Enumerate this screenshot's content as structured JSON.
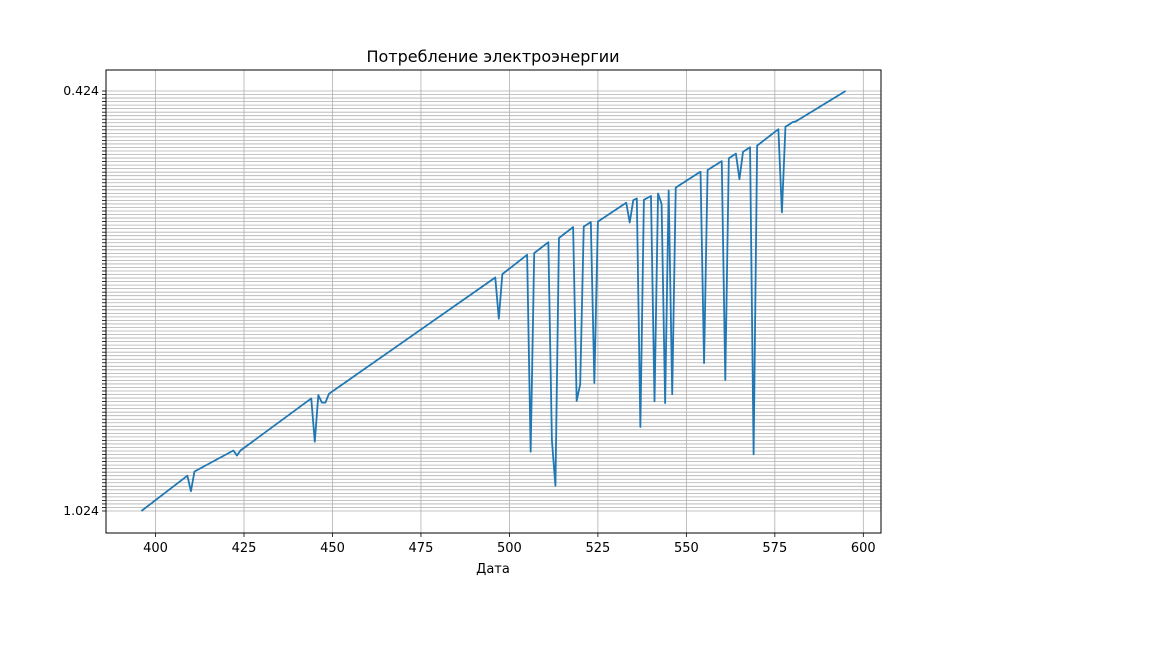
{
  "chart_data": {
    "type": "line",
    "title": "Потребление электроэнергии",
    "xlabel": "Дата",
    "ylabel": "",
    "grid": true,
    "line_color": "#1f77b4",
    "xlim": [
      386,
      605
    ],
    "x_ticks": [
      400,
      425,
      450,
      475,
      500,
      525,
      550,
      575,
      600
    ],
    "y_ticks_top_label": "0.424",
    "y_ticks_bottom_label": "1.024",
    "y_tick_count": 120,
    "series": [
      {
        "name": "",
        "x": [
          396,
          409,
          410,
          411,
          422,
          423,
          424,
          444,
          445,
          446,
          447,
          448,
          449,
          496,
          497,
          498,
          505,
          506,
          507,
          511,
          512,
          513,
          514,
          518,
          519,
          520,
          521,
          523,
          524,
          525,
          533,
          534,
          535,
          536,
          537,
          538,
          540,
          541,
          542,
          543,
          544,
          545,
          546,
          547,
          554,
          555,
          556,
          560,
          561,
          562,
          564,
          565,
          566,
          568,
          569,
          570,
          576,
          577,
          578,
          579,
          580,
          581,
          595
        ],
        "y": [
          0,
          0.084,
          0.047,
          0.094,
          0.144,
          0.132,
          0.144,
          0.268,
          0.165,
          0.276,
          0.258,
          0.258,
          0.279,
          0.556,
          0.458,
          0.564,
          0.61,
          0.141,
          0.614,
          0.64,
          0.169,
          0.06,
          0.65,
          0.676,
          0.262,
          0.302,
          0.677,
          0.688,
          0.305,
          0.689,
          0.734,
          0.687,
          0.74,
          0.744,
          0.2,
          0.741,
          0.75,
          0.261,
          0.756,
          0.731,
          0.257,
          0.763,
          0.278,
          0.77,
          0.808,
          0.352,
          0.812,
          0.833,
          0.312,
          0.84,
          0.851,
          0.79,
          0.855,
          0.866,
          0.135,
          0.87,
          0.909,
          0.711,
          0.915,
          0.92,
          0.926,
          0.928,
          1.0
        ]
      }
    ]
  }
}
